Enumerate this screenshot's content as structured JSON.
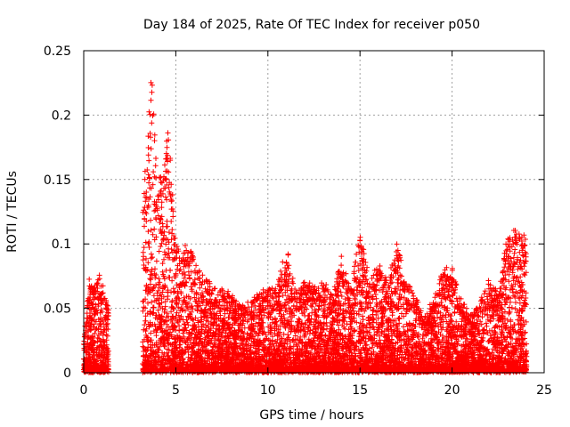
{
  "chart_data": {
    "type": "scatter",
    "title": "Day 184 of 2025, Rate Of TEC Index for receiver p050",
    "xlabel": "GPS time / hours",
    "ylabel": "ROTI / TECUs",
    "xlim": [
      0,
      25
    ],
    "ylim": [
      0,
      0.25
    ],
    "xticks": [
      0,
      5,
      10,
      15,
      20,
      25
    ],
    "xtick_labels": [
      "0",
      "5",
      "10",
      "15",
      "20",
      "25"
    ],
    "yticks": [
      0,
      0.05,
      0.1,
      0.15,
      0.2,
      0.25
    ],
    "ytick_labels": [
      "0",
      "0.05",
      "0.1",
      "0.15",
      "0.2",
      "0.25"
    ],
    "grid": true,
    "marker": "+",
    "color": "#ff0000",
    "data_gap_hours": [
      1.35,
      3.2
    ],
    "envelope_hours": [
      0.0,
      0.3,
      0.6,
      0.9,
      1.3,
      3.3,
      3.5,
      3.7,
      4.0,
      4.3,
      4.6,
      5.0,
      5.5,
      6.0,
      6.5,
      7.0,
      7.5,
      8.0,
      8.5,
      9.0,
      9.5,
      10.0,
      10.5,
      11.0,
      11.5,
      12.0,
      12.5,
      13.0,
      13.5,
      14.0,
      14.5,
      15.0,
      15.5,
      16.0,
      16.5,
      17.0,
      17.5,
      18.0,
      18.5,
      19.0,
      19.5,
      20.0,
      20.5,
      21.0,
      21.5,
      22.0,
      22.5,
      23.0,
      23.5,
      24.0
    ],
    "envelope_roti": [
      0.025,
      0.07,
      0.065,
      0.08,
      0.05,
      0.145,
      0.2,
      0.235,
      0.145,
      0.16,
      0.19,
      0.1,
      0.1,
      0.09,
      0.075,
      0.065,
      0.065,
      0.06,
      0.05,
      0.055,
      0.06,
      0.065,
      0.065,
      0.1,
      0.06,
      0.07,
      0.065,
      0.07,
      0.06,
      0.09,
      0.065,
      0.11,
      0.07,
      0.085,
      0.07,
      0.1,
      0.07,
      0.06,
      0.045,
      0.055,
      0.08,
      0.08,
      0.055,
      0.045,
      0.055,
      0.07,
      0.06,
      0.105,
      0.11,
      0.105
    ]
  }
}
